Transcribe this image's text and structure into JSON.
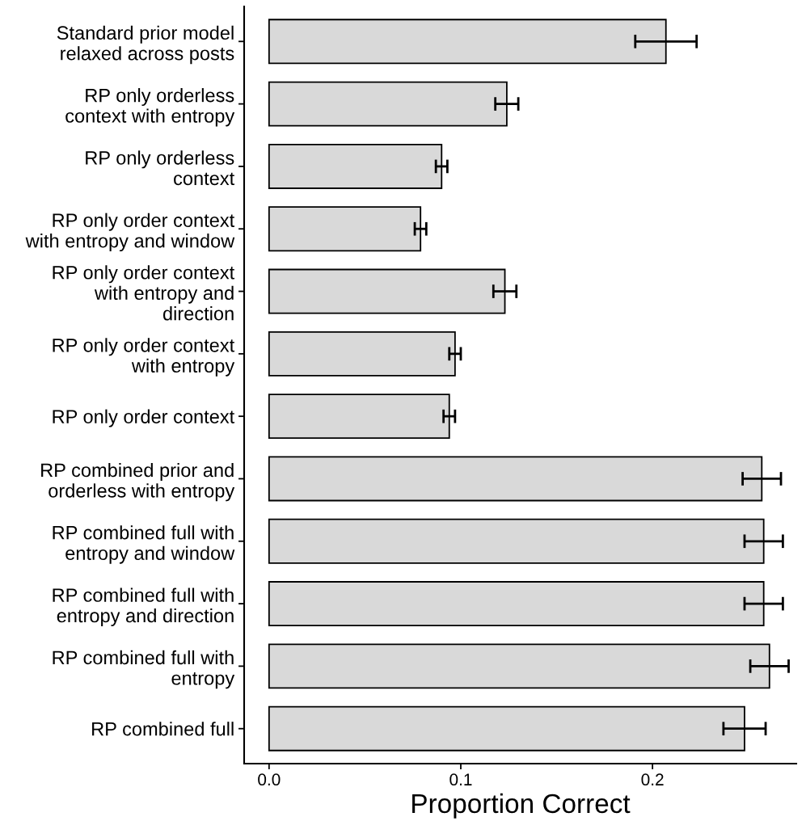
{
  "chart_data": {
    "type": "bar",
    "orientation": "horizontal",
    "xlabel": "Proportion Correct",
    "categories": [
      "Standard prior model\nrelaxed across posts",
      "RP only orderless\ncontext with entropy",
      "RP only orderless\ncontext",
      "RP only order context\nwith entropy and window",
      "RP only order context\nwith entropy and\ndirection",
      "RP only order context\nwith entropy",
      "RP only order context",
      "RP combined prior and\norderless with entropy",
      "RP combined full with\nentropy and window",
      "RP combined full with\nentropy and direction",
      "RP combined full with\nentropy",
      "RP combined full"
    ],
    "values": [
      0.207,
      0.124,
      0.09,
      0.079,
      0.123,
      0.097,
      0.094,
      0.257,
      0.258,
      0.258,
      0.261,
      0.248
    ],
    "errors": [
      0.016,
      0.006,
      0.003,
      0.003,
      0.006,
      0.003,
      0.003,
      0.01,
      0.01,
      0.01,
      0.01,
      0.011
    ],
    "color": "#d9d9d9",
    "xlim": [
      -0.013,
      0.275
    ],
    "xticks": [
      {
        "value": 0,
        "label": "0.0"
      },
      0.1,
      0.2
    ],
    "grid": false,
    "legend": false
  }
}
